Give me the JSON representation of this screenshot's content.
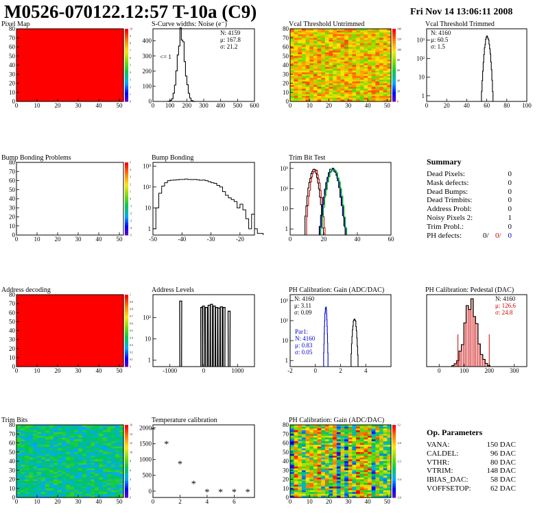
{
  "header": {
    "title": "M0526-070122.12:57 T-10a (C9)",
    "timestamp": "Fri Nov 14 13:06:11 2008"
  },
  "colors": {
    "frame": "#000000",
    "red": "#cc0000",
    "blue": "#0000cc",
    "green": "#00cc00"
  },
  "chart_data": [
    {
      "id": "pixel-map",
      "type": "heatmap",
      "title": "Pixel Map",
      "xlim": [
        0,
        52
      ],
      "ylim": [
        0,
        80
      ],
      "xticks": [
        "0",
        "10",
        "20",
        "30",
        "40",
        "50"
      ],
      "yticks": [
        "0",
        "10",
        "20",
        "30",
        "40",
        "50",
        "60",
        "70",
        "80"
      ],
      "fill": "uniform",
      "value": 10,
      "palette": {
        "min": 0,
        "max": 10,
        "ticks": [
          "0",
          "1",
          "2",
          "3",
          "4",
          "5",
          "6",
          "7",
          "8",
          "9",
          "10"
        ]
      }
    },
    {
      "id": "scurve-noise",
      "type": "line",
      "title": "S-Curve widths: Noise (e⁻)",
      "xlim": [
        0,
        600
      ],
      "ylim": [
        0,
        480
      ],
      "xticks": [
        "0",
        "100",
        "200",
        "300",
        "400",
        "500",
        "600"
      ],
      "yticks": [
        "0",
        "100",
        "200",
        "300",
        "400"
      ],
      "stats": [
        "N: 4159",
        "μ: 167.8",
        "σ: 21.2"
      ],
      "annotation": "<= 1",
      "series": [
        {
          "kind": "gauss",
          "center": 167.8,
          "sigma": 21.2,
          "peak": 455,
          "color": "#000000"
        }
      ]
    },
    {
      "id": "vcal-untrimmed",
      "type": "heatmap",
      "title": "Vcal Threshold Untrimmed",
      "xlim": [
        0,
        52
      ],
      "ylim": [
        0,
        80
      ],
      "xticks": [
        "0",
        "10",
        "20",
        "30",
        "40",
        "50"
      ],
      "yticks": [
        "0",
        "10",
        "20",
        "30",
        "40",
        "50",
        "60",
        "70",
        "80"
      ],
      "fill": "noise",
      "noise": {
        "base": 0.72,
        "spread": 0.2
      },
      "palette": {
        "min": 0,
        "max": 140,
        "ticks": [
          "0",
          "20",
          "40",
          "60",
          "80",
          "100",
          "120",
          "140"
        ]
      }
    },
    {
      "id": "vcal-trimmed",
      "type": "line",
      "title": "Vcal Threshold Trimmed",
      "xlim": [
        0,
        100
      ],
      "log": true,
      "ylog": [
        0.5,
        4000
      ],
      "xticks": [
        "0",
        "20",
        "40",
        "60",
        "80",
        "100"
      ],
      "yticks": [
        "1",
        "10",
        "10²",
        "10³"
      ],
      "stats": [
        "N: 4160",
        "μ: 60.5",
        "σ:  1.5"
      ],
      "series": [
        {
          "kind": "gauss",
          "center": 60.5,
          "sigma": 1.5,
          "peak": 1500,
          "color": "#000000"
        }
      ]
    },
    {
      "id": "bump-bonding-problems",
      "type": "heatmap",
      "title": "Bump Bonding Problems",
      "xlim": [
        0,
        52
      ],
      "ylim": [
        0,
        80
      ],
      "xticks": [
        "0",
        "10",
        "20",
        "30",
        "40",
        "50"
      ],
      "yticks": [
        "0",
        "10",
        "20",
        "30",
        "40",
        "50",
        "60",
        "70",
        "80"
      ],
      "fill": "empty",
      "palette": {
        "min": -5,
        "max": 5,
        "ticks": [
          "-5",
          "-4",
          "-3",
          "-2",
          "-1",
          "0",
          "1",
          "2",
          "3",
          "4",
          "5"
        ]
      }
    },
    {
      "id": "bump-bonding",
      "type": "line",
      "title": "Bump Bonding",
      "xlim": [
        -50,
        -15
      ],
      "log": true,
      "ylog": [
        0.5,
        1500
      ],
      "xticks": [
        "-50",
        "-40",
        "-30",
        "-20"
      ],
      "yticks": [
        "1",
        "10",
        "10²",
        "10³"
      ],
      "series": [
        {
          "kind": "hist",
          "color": "#000000",
          "x0": -50,
          "dx": 1,
          "values": [
            1,
            10,
            50,
            110,
            160,
            200,
            210,
            215,
            220,
            230,
            230,
            240,
            230,
            225,
            230,
            220,
            210,
            215,
            200,
            180,
            160,
            150,
            120,
            100,
            60,
            40,
            30,
            25,
            20,
            10,
            15,
            8,
            3,
            1,
            5,
            1,
            0.6,
            0.6
          ]
        }
      ]
    },
    {
      "id": "trim-bit-test",
      "type": "line",
      "title": "Trim Bit Test",
      "xlim": [
        0,
        60
      ],
      "log": true,
      "ylog": [
        0.5,
        2000
      ],
      "xticks": [
        "0",
        "20",
        "40",
        "60"
      ],
      "yticks": [
        "1",
        "10",
        "10²",
        "10³"
      ],
      "series": [
        {
          "kind": "gauss",
          "center": 14,
          "sigma": 1.5,
          "peak": 900,
          "color": "#000000"
        },
        {
          "kind": "gauss",
          "center": 15,
          "sigma": 1.5,
          "peak": 850,
          "color": "#cc0000"
        },
        {
          "kind": "gauss",
          "center": 25,
          "sigma": 2.0,
          "peak": 1000,
          "color": "#000000"
        },
        {
          "kind": "gauss",
          "center": 25.5,
          "sigma": 2.0,
          "peak": 950,
          "color": "#0000cc"
        },
        {
          "kind": "gauss",
          "center": 26,
          "sigma": 2.0,
          "peak": 900,
          "color": "#00cc00",
          "tail": [
            26,
            60
          ]
        }
      ]
    },
    {
      "id": "address-decoding",
      "type": "heatmap",
      "title": "Address decoding",
      "xlim": [
        0,
        52
      ],
      "ylim": [
        0,
        80
      ],
      "xticks": [
        "0",
        "10",
        "20",
        "30",
        "40",
        "50"
      ],
      "yticks": [
        "0",
        "10",
        "20",
        "30",
        "40",
        "50",
        "60",
        "70",
        "80"
      ],
      "fill": "uniform",
      "value": 1,
      "palette": {
        "min": 0,
        "max": 1,
        "ticks": [
          "0",
          "0.1",
          "0.2",
          "0.3",
          "0.4",
          "0.5",
          "0.6",
          "0.7",
          "0.8",
          "0.9",
          "1"
        ]
      }
    },
    {
      "id": "address-levels",
      "type": "line",
      "title": "Address Levels",
      "xlim": [
        -1500,
        1500
      ],
      "log": true,
      "ylog": [
        0.5,
        1200
      ],
      "xticks": [
        "-1000",
        "0",
        "1000"
      ],
      "yticks": [
        "1",
        "10",
        "10²"
      ],
      "series": [
        {
          "kind": "spikes",
          "color": "#000000",
          "width": 25,
          "centers": [
            -680,
            -60,
            -10,
            80,
            160,
            230,
            310,
            380,
            450,
            520,
            600,
            750
          ],
          "peaks": [
            600,
            300,
            350,
            300,
            380,
            420,
            350,
            300,
            280,
            320,
            300,
            200
          ]
        }
      ]
    },
    {
      "id": "ph-gain",
      "type": "line",
      "title": "PH Calibration: Gain (ADC/DAC)",
      "xlim": [
        -2,
        6
      ],
      "log": true,
      "ylog": [
        0.5,
        2000
      ],
      "xticks": [
        "-2",
        "0",
        "2",
        "4"
      ],
      "yticks": [
        "1",
        "10",
        "10²",
        "10³"
      ],
      "stats": [
        "N: 4160",
        "μ: 3.11",
        "σ: 0.09"
      ],
      "stats2": [
        "Par1:",
        "N: 4160",
        "μ: 0.83",
        "σ: 0.05"
      ],
      "series": [
        {
          "kind": "gauss",
          "center": 3.11,
          "sigma": 0.09,
          "peak": 140,
          "color": "#000000"
        },
        {
          "kind": "gauss",
          "center": 0.83,
          "sigma": 0.05,
          "peak": 500,
          "color": "#0000cc"
        }
      ]
    },
    {
      "id": "ph-pedestal",
      "type": "bar",
      "title": "PH Calibration: Pedestal (DAC)",
      "xlim": [
        -50,
        350
      ],
      "ylim": [
        0,
        80
      ],
      "xticks": [
        "0",
        "100",
        "200",
        "300"
      ],
      "yticks": [],
      "stats": [
        "N: 4160",
        "μ: 126.6",
        "σ: 24.8"
      ],
      "series": [
        {
          "kind": "gauss",
          "center": 126.6,
          "sigma": 24.8,
          "peak": 70,
          "color": "#000000",
          "fillcolor": "#cc0000"
        }
      ],
      "markers": [
        75,
        200
      ]
    },
    {
      "id": "trim-bits",
      "type": "heatmap",
      "title": "Trim Bits",
      "xlim": [
        0,
        52
      ],
      "ylim": [
        0,
        80
      ],
      "xticks": [
        "0",
        "10",
        "20",
        "30",
        "40",
        "50"
      ],
      "yticks": [
        "0",
        "10",
        "20",
        "30",
        "40",
        "50",
        "60",
        "70",
        "80"
      ],
      "fill": "noise",
      "noise": {
        "base": 0.36,
        "spread": 0.12
      },
      "palette": {
        "min": 0,
        "max": 16,
        "ticks": [
          "0",
          "2",
          "4",
          "6",
          "8",
          "10",
          "12",
          "14",
          "16"
        ]
      }
    },
    {
      "id": "temperature-calibration",
      "type": "scatter",
      "title": "Temperature calibration",
      "xlim": [
        0,
        7.5
      ],
      "ylim": [
        -200,
        2100
      ],
      "xticks": [
        "0",
        "2",
        "4",
        "6"
      ],
      "yticks": [
        "0",
        "500",
        "1000",
        "1500",
        "2000"
      ],
      "x": [
        0,
        1,
        2,
        3,
        4,
        5,
        6,
        7
      ],
      "y": [
        1950,
        1500,
        870,
        240,
        -20,
        -20,
        -20,
        -20
      ]
    },
    {
      "id": "ph-gain-map",
      "type": "heatmap",
      "title": "PH Calibration: Gain (ADC/DAC)",
      "xlim": [
        0,
        52
      ],
      "ylim": [
        0,
        80
      ],
      "xticks": [
        "0",
        "10",
        "20",
        "30",
        "40",
        "50"
      ],
      "yticks": [
        "0",
        "10",
        "20",
        "30",
        "40",
        "50",
        "60",
        "70",
        "80"
      ],
      "fill": "columns",
      "noise": {
        "base": 0.55,
        "spread": 0.3
      },
      "palette": {
        "min": -2.6,
        "max": 3.2,
        "ticks": [
          "-2.6",
          "-2.4",
          "-2.2",
          "-2.0",
          "3.2"
        ]
      }
    }
  ],
  "summary": {
    "title": "Summary",
    "rows": [
      {
        "label": "Dead Pixels:",
        "value": "0"
      },
      {
        "label": "Mask defects:",
        "value": "0"
      },
      {
        "label": "Dead Bumps:",
        "value": "0"
      },
      {
        "label": "Dead Trimbits:",
        "value": "0"
      },
      {
        "label": "Address Probl:",
        "value": "0"
      },
      {
        "label": "Noisy Pixels 2:",
        "value": "1"
      },
      {
        "label": "Trim Probl.:",
        "value": "0"
      }
    ],
    "ph_defects": {
      "label": "PH defects:",
      "v1": "0/",
      "v2": "0/",
      "v3": "0"
    }
  },
  "op_parameters": {
    "title": "Op. Parameters",
    "rows": [
      {
        "label": "VANA:",
        "value": "150 DAC"
      },
      {
        "label": "CALDEL:",
        "value": "96 DAC"
      },
      {
        "label": "VTHR:",
        "value": "80 DAC"
      },
      {
        "label": "VTRIM:",
        "value": "148 DAC"
      },
      {
        "label": "IBIAS_DAC:",
        "value": "58 DAC"
      },
      {
        "label": "VOFFSETOP:",
        "value": "62 DAC"
      }
    ]
  }
}
